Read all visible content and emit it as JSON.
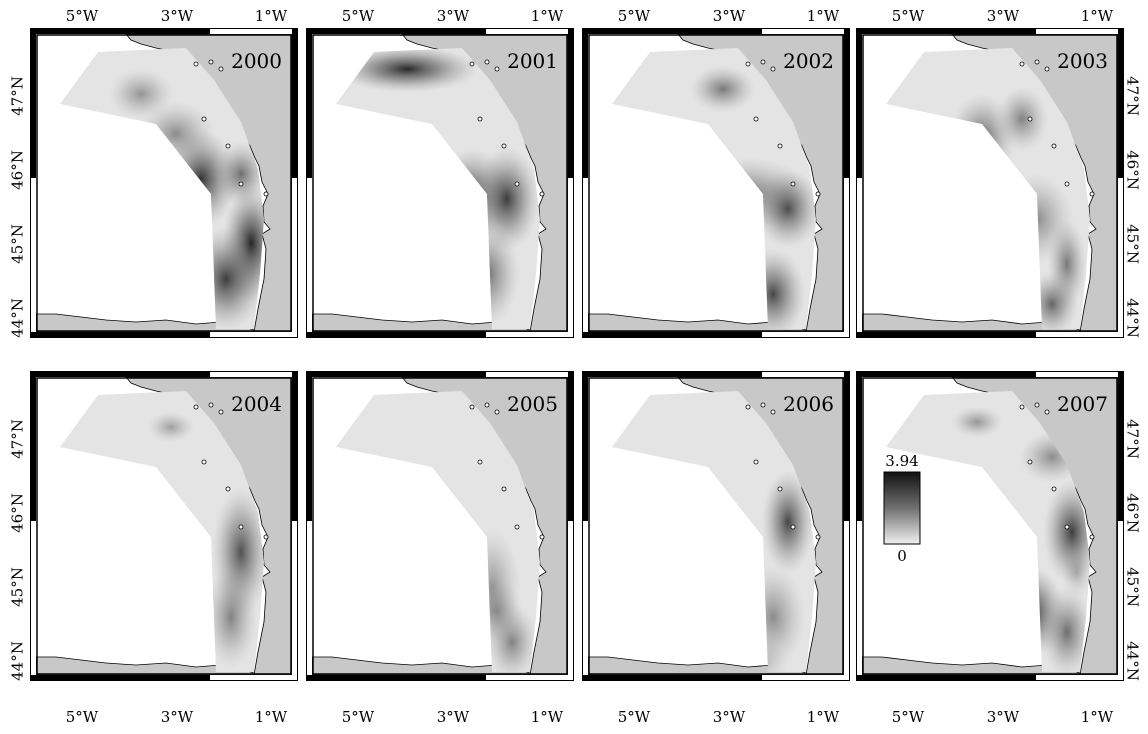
{
  "panels": [
    {
      "year": "2000"
    },
    {
      "year": "2001"
    },
    {
      "year": "2002"
    },
    {
      "year": "2003"
    },
    {
      "year": "2004"
    },
    {
      "year": "2005"
    },
    {
      "year": "2006"
    },
    {
      "year": "2007"
    }
  ],
  "lon_labels": [
    "5°W",
    "3°W",
    "1°W"
  ],
  "lat_labels": [
    "47°N",
    "46°N",
    "45°N",
    "44°N"
  ],
  "legend": {
    "max": "3.94",
    "min": "0"
  },
  "colors": {
    "land": "#c8c8c8",
    "sea": "#ffffff",
    "low": "#e4e4e4",
    "high": "#141414"
  }
}
